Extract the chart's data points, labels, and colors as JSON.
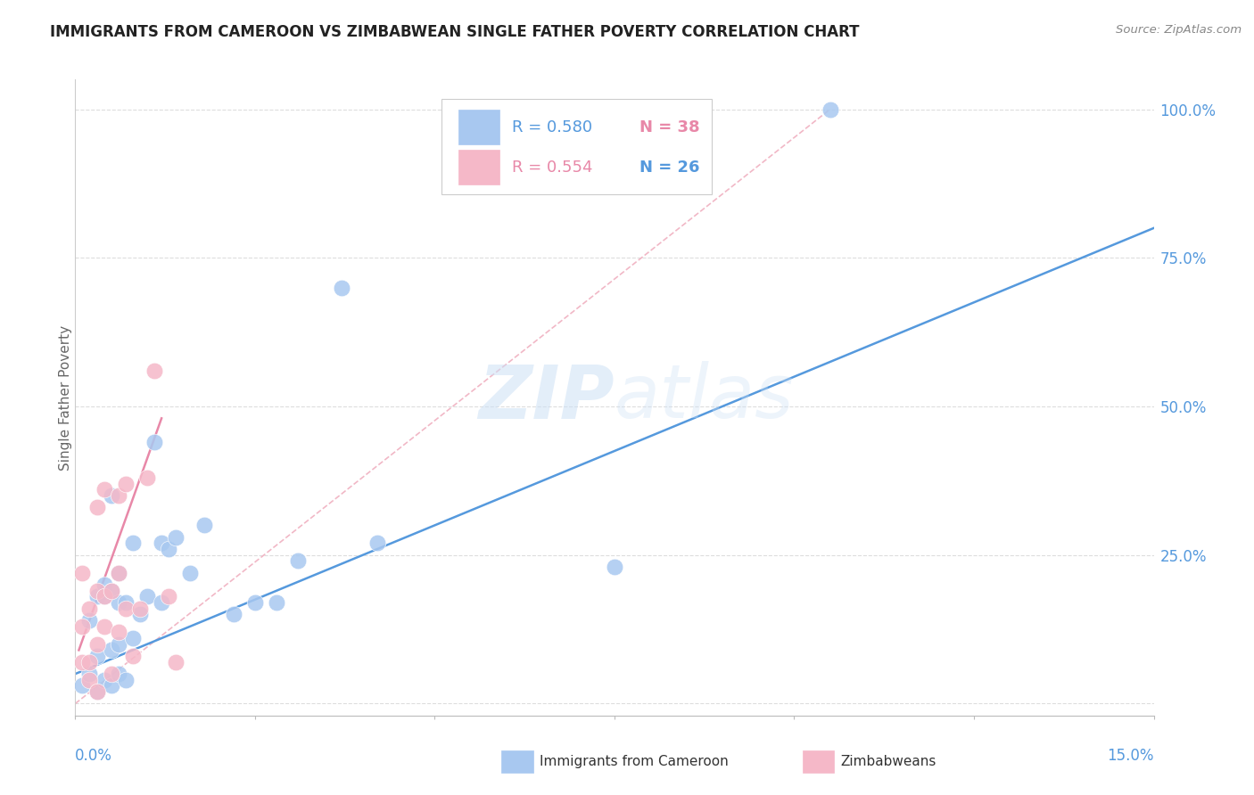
{
  "title": "IMMIGRANTS FROM CAMEROON VS ZIMBABWEAN SINGLE FATHER POVERTY CORRELATION CHART",
  "source": "Source: ZipAtlas.com",
  "ylabel": "Single Father Poverty",
  "ytick_labels": [
    "25.0%",
    "50.0%",
    "75.0%",
    "100.0%"
  ],
  "ytick_values": [
    0.25,
    0.5,
    0.75,
    1.0
  ],
  "xlim": [
    0,
    0.15
  ],
  "ylim": [
    -0.02,
    1.05
  ],
  "legend_blue_R": "R = 0.580",
  "legend_blue_N": "N = 38",
  "legend_pink_R": "R = 0.554",
  "legend_pink_N": "N = 26",
  "legend_label_blue": "Immigrants from Cameroon",
  "legend_label_pink": "Zimbabweans",
  "watermark_zip": "ZIP",
  "watermark_atlas": "atlas",
  "blue_color": "#a8c8f0",
  "pink_color": "#f5b8c8",
  "blue_line_color": "#5599dd",
  "pink_line_color": "#e888a8",
  "diag_line_color": "#f0b0c0",
  "axis_color": "#5599dd",
  "grid_color": "#dddddd",
  "blue_points_x": [
    0.001,
    0.002,
    0.002,
    0.003,
    0.003,
    0.003,
    0.004,
    0.004,
    0.004,
    0.005,
    0.005,
    0.005,
    0.005,
    0.006,
    0.006,
    0.006,
    0.006,
    0.007,
    0.007,
    0.008,
    0.008,
    0.009,
    0.01,
    0.011,
    0.012,
    0.012,
    0.013,
    0.014,
    0.016,
    0.018,
    0.022,
    0.025,
    0.028,
    0.031,
    0.037,
    0.042,
    0.075,
    0.105
  ],
  "blue_points_y": [
    0.03,
    0.05,
    0.14,
    0.02,
    0.08,
    0.18,
    0.04,
    0.18,
    0.2,
    0.03,
    0.09,
    0.19,
    0.35,
    0.05,
    0.1,
    0.17,
    0.22,
    0.04,
    0.17,
    0.11,
    0.27,
    0.15,
    0.18,
    0.44,
    0.17,
    0.27,
    0.26,
    0.28,
    0.22,
    0.3,
    0.15,
    0.17,
    0.17,
    0.24,
    0.7,
    0.27,
    0.23,
    1.0
  ],
  "pink_points_x": [
    0.001,
    0.001,
    0.001,
    0.002,
    0.002,
    0.002,
    0.003,
    0.003,
    0.003,
    0.003,
    0.004,
    0.004,
    0.004,
    0.005,
    0.005,
    0.006,
    0.006,
    0.006,
    0.007,
    0.007,
    0.008,
    0.009,
    0.01,
    0.011,
    0.013,
    0.014
  ],
  "pink_points_y": [
    0.07,
    0.13,
    0.22,
    0.04,
    0.07,
    0.16,
    0.02,
    0.1,
    0.19,
    0.33,
    0.13,
    0.18,
    0.36,
    0.05,
    0.19,
    0.12,
    0.22,
    0.35,
    0.16,
    0.37,
    0.08,
    0.16,
    0.38,
    0.56,
    0.18,
    0.07
  ],
  "blue_line_x": [
    0.0,
    0.15
  ],
  "blue_line_y": [
    0.05,
    0.8
  ],
  "pink_line_x": [
    0.0005,
    0.012
  ],
  "pink_line_y": [
    0.09,
    0.48
  ],
  "diag_line_x": [
    0.0,
    0.105
  ],
  "diag_line_y": [
    0.0,
    1.0
  ]
}
